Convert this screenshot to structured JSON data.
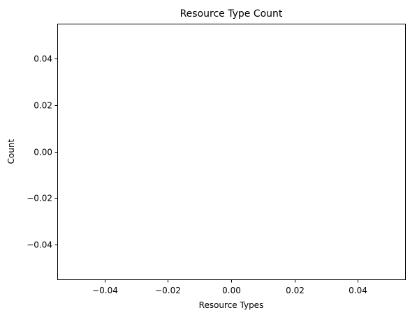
{
  "chart_data": {
    "type": "bar",
    "title": "Resource Type Count",
    "xlabel": "Resource Types",
    "ylabel": "Count",
    "categories": [],
    "values": [],
    "xlim": [
      -0.055,
      0.055
    ],
    "ylim": [
      -0.055,
      0.055
    ],
    "xticks": [
      -0.04,
      -0.02,
      0.0,
      0.02,
      0.04
    ],
    "xtick_labels": [
      "−0.04",
      "−0.02",
      "0.00",
      "0.02",
      "0.04"
    ],
    "yticks": [
      -0.04,
      -0.02,
      0.0,
      0.02,
      0.04
    ],
    "ytick_labels": [
      "−0.04",
      "−0.02",
      "0.00",
      "0.02",
      "0.04"
    ],
    "grid": false,
    "legend": "none"
  }
}
